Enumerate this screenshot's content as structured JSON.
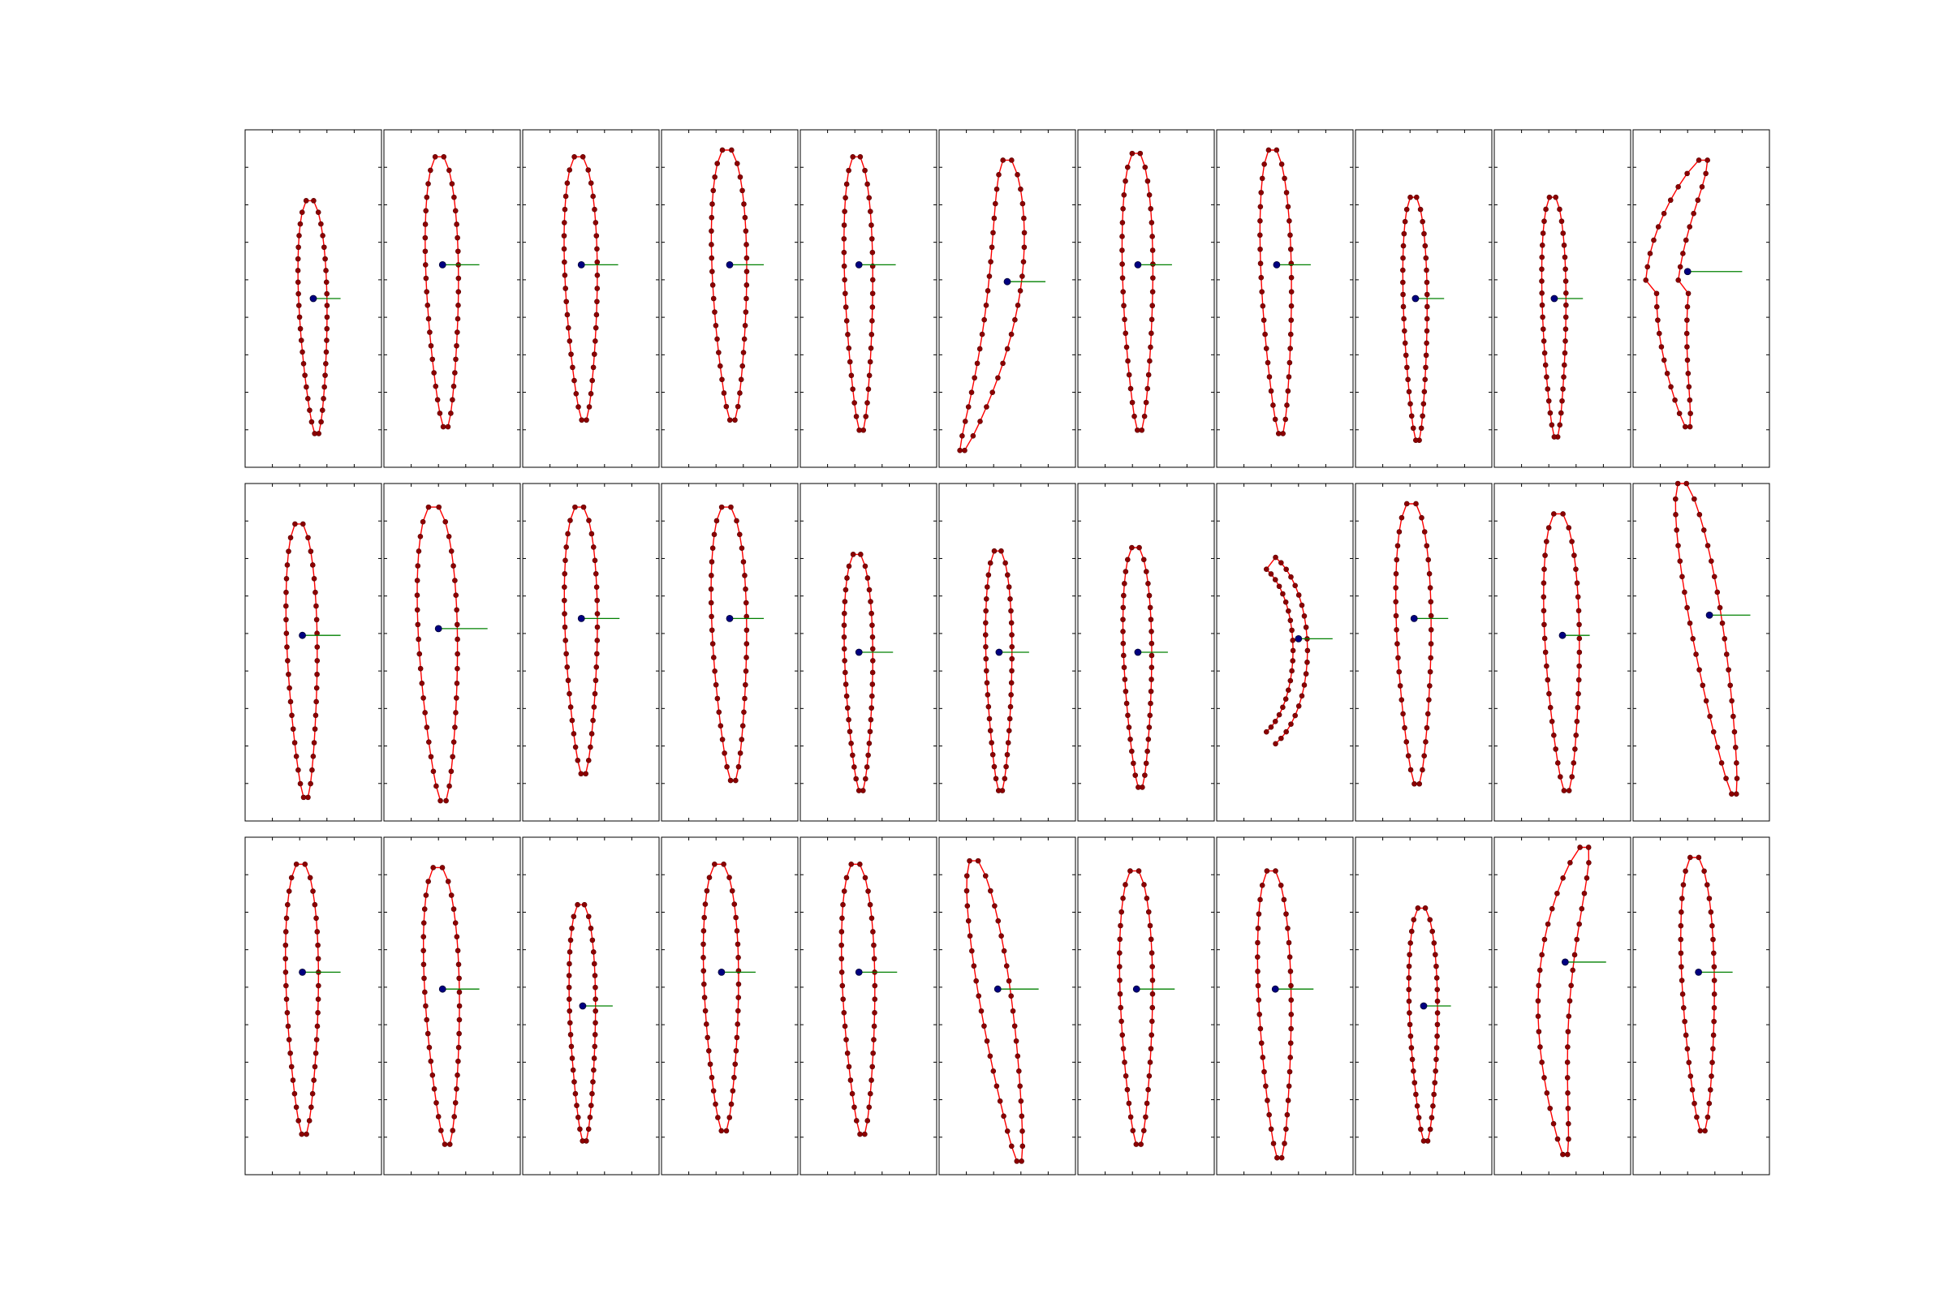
{
  "figure": {
    "description_free": true,
    "rows": 3,
    "cols": 11,
    "colors": {
      "contour_line": "#ff0000",
      "contour_point": "#8b0000",
      "centroid": "#000080",
      "normal_vector": "#008000",
      "frame": "#000000",
      "background": "#ffffff"
    }
  },
  "chart_data": {
    "type": "scatter",
    "title": "",
    "grid": false,
    "legend": "none",
    "panel_xlim": [
      0,
      1
    ],
    "panel_ylim": [
      0,
      1
    ],
    "panels": [
      {
        "row": 0,
        "col": 0,
        "shape": "upright",
        "cx": 0.5,
        "cy": 0.5,
        "top": 0.79,
        "bottom": 0.1,
        "width": 0.26,
        "bend": 0.1,
        "vec": 0.2
      },
      {
        "row": 0,
        "col": 1,
        "shape": "upright",
        "cx": 0.43,
        "cy": 0.6,
        "top": 0.92,
        "bottom": 0.12,
        "width": 0.3,
        "bend": 0.09,
        "vec": 0.27
      },
      {
        "row": 0,
        "col": 2,
        "shape": "upright",
        "cx": 0.43,
        "cy": 0.6,
        "top": 0.92,
        "bottom": 0.14,
        "width": 0.3,
        "bend": 0.08,
        "vec": 0.27
      },
      {
        "row": 0,
        "col": 3,
        "shape": "upright",
        "cx": 0.5,
        "cy": 0.6,
        "top": 0.94,
        "bottom": 0.14,
        "width": 0.32,
        "bend": 0.08,
        "vec": 0.25
      },
      {
        "row": 0,
        "col": 4,
        "shape": "upright",
        "cx": 0.43,
        "cy": 0.6,
        "top": 0.92,
        "bottom": 0.11,
        "width": 0.26,
        "bend": 0.07,
        "vec": 0.27
      },
      {
        "row": 0,
        "col": 5,
        "shape": "curve",
        "cx": 0.5,
        "cy": 0.55,
        "top": 0.91,
        "bottom": 0.05,
        "width": 0.3,
        "bend": 0.55,
        "vec": 0.28
      },
      {
        "row": 0,
        "col": 6,
        "shape": "upright",
        "cx": 0.44,
        "cy": 0.6,
        "top": 0.93,
        "bottom": 0.11,
        "width": 0.28,
        "bend": 0.05,
        "vec": 0.25
      },
      {
        "row": 0,
        "col": 7,
        "shape": "upright",
        "cx": 0.44,
        "cy": 0.6,
        "top": 0.94,
        "bottom": 0.1,
        "width": 0.28,
        "bend": 0.12,
        "vec": 0.25
      },
      {
        "row": 0,
        "col": 8,
        "shape": "upright",
        "cx": 0.44,
        "cy": 0.5,
        "top": 0.8,
        "bottom": 0.08,
        "width": 0.22,
        "bend": 0.06,
        "vec": 0.21
      },
      {
        "row": 0,
        "col": 9,
        "shape": "upright",
        "cx": 0.44,
        "cy": 0.5,
        "top": 0.8,
        "bottom": 0.09,
        "width": 0.22,
        "bend": 0.05,
        "vec": 0.21
      },
      {
        "row": 0,
        "col": 10,
        "shape": "hook",
        "cx": 0.4,
        "cy": 0.58,
        "top": 0.91,
        "bottom": 0.12,
        "width": 0.3,
        "bend": 0.38,
        "vec": 0.4
      },
      {
        "row": 1,
        "col": 0,
        "shape": "upright",
        "cx": 0.42,
        "cy": 0.55,
        "top": 0.88,
        "bottom": 0.07,
        "width": 0.28,
        "bend": 0.1,
        "vec": 0.28
      },
      {
        "row": 1,
        "col": 1,
        "shape": "upright",
        "cx": 0.4,
        "cy": 0.57,
        "top": 0.93,
        "bottom": 0.06,
        "width": 0.36,
        "bend": 0.14,
        "vec": 0.36
      },
      {
        "row": 1,
        "col": 2,
        "shape": "upright",
        "cx": 0.43,
        "cy": 0.6,
        "top": 0.93,
        "bottom": 0.14,
        "width": 0.3,
        "bend": 0.06,
        "vec": 0.28
      },
      {
        "row": 1,
        "col": 3,
        "shape": "upright",
        "cx": 0.5,
        "cy": 0.6,
        "top": 0.93,
        "bottom": 0.12,
        "width": 0.32,
        "bend": 0.1,
        "vec": 0.25
      },
      {
        "row": 1,
        "col": 4,
        "shape": "upright",
        "cx": 0.43,
        "cy": 0.5,
        "top": 0.79,
        "bottom": 0.09,
        "width": 0.26,
        "bend": 0.06,
        "vec": 0.25
      },
      {
        "row": 1,
        "col": 5,
        "shape": "upright",
        "cx": 0.44,
        "cy": 0.5,
        "top": 0.8,
        "bottom": 0.09,
        "width": 0.24,
        "bend": 0.04,
        "vec": 0.22
      },
      {
        "row": 1,
        "col": 6,
        "shape": "upright",
        "cx": 0.44,
        "cy": 0.5,
        "top": 0.81,
        "bottom": 0.1,
        "width": 0.26,
        "bend": 0.07,
        "vec": 0.22
      },
      {
        "row": 1,
        "col": 7,
        "shape": "crescent",
        "cx": 0.6,
        "cy": 0.54,
        "top": 0.77,
        "bottom": 0.24,
        "width": 0.2,
        "bend": 0.55,
        "vec": 0.25
      },
      {
        "row": 1,
        "col": 8,
        "shape": "upright",
        "cx": 0.43,
        "cy": 0.6,
        "top": 0.94,
        "bottom": 0.11,
        "width": 0.32,
        "bend": 0.08,
        "vec": 0.25
      },
      {
        "row": 1,
        "col": 9,
        "shape": "upright",
        "cx": 0.5,
        "cy": 0.55,
        "top": 0.91,
        "bottom": 0.09,
        "width": 0.32,
        "bend": 0.12,
        "vec": 0.2
      },
      {
        "row": 1,
        "col": 10,
        "shape": "curve-right",
        "cx": 0.56,
        "cy": 0.61,
        "top": 1.0,
        "bottom": 0.08,
        "width": 0.3,
        "bend": 0.4,
        "vec": 0.3
      },
      {
        "row": 2,
        "col": 0,
        "shape": "upright",
        "cx": 0.42,
        "cy": 0.6,
        "top": 0.92,
        "bottom": 0.12,
        "width": 0.3,
        "bend": 0.05,
        "vec": 0.28
      },
      {
        "row": 2,
        "col": 1,
        "shape": "upright",
        "cx": 0.43,
        "cy": 0.55,
        "top": 0.91,
        "bottom": 0.09,
        "width": 0.32,
        "bend": 0.14,
        "vec": 0.27
      },
      {
        "row": 2,
        "col": 2,
        "shape": "upright",
        "cx": 0.44,
        "cy": 0.5,
        "top": 0.8,
        "bottom": 0.1,
        "width": 0.24,
        "bend": 0.05,
        "vec": 0.22
      },
      {
        "row": 2,
        "col": 3,
        "shape": "upright",
        "cx": 0.44,
        "cy": 0.6,
        "top": 0.92,
        "bottom": 0.13,
        "width": 0.32,
        "bend": 0.07,
        "vec": 0.25
      },
      {
        "row": 2,
        "col": 4,
        "shape": "upright",
        "cx": 0.43,
        "cy": 0.6,
        "top": 0.92,
        "bottom": 0.12,
        "width": 0.3,
        "bend": 0.1,
        "vec": 0.28
      },
      {
        "row": 2,
        "col": 5,
        "shape": "curve-right",
        "cx": 0.43,
        "cy": 0.55,
        "top": 0.93,
        "bottom": 0.04,
        "width": 0.3,
        "bend": 0.35,
        "vec": 0.3
      },
      {
        "row": 2,
        "col": 6,
        "shape": "upright",
        "cx": 0.43,
        "cy": 0.55,
        "top": 0.9,
        "bottom": 0.09,
        "width": 0.3,
        "bend": 0.06,
        "vec": 0.28
      },
      {
        "row": 2,
        "col": 7,
        "shape": "upright",
        "cx": 0.43,
        "cy": 0.55,
        "top": 0.9,
        "bottom": 0.05,
        "width": 0.3,
        "bend": 0.12,
        "vec": 0.28
      },
      {
        "row": 2,
        "col": 8,
        "shape": "upright",
        "cx": 0.5,
        "cy": 0.5,
        "top": 0.79,
        "bottom": 0.1,
        "width": 0.26,
        "bend": 0.06,
        "vec": 0.2
      },
      {
        "row": 2,
        "col": 9,
        "shape": "hook-right",
        "cx": 0.52,
        "cy": 0.63,
        "top": 0.97,
        "bottom": 0.06,
        "width": 0.3,
        "bend": 0.4,
        "vec": 0.3
      },
      {
        "row": 2,
        "col": 10,
        "shape": "upright",
        "cx": 0.48,
        "cy": 0.6,
        "top": 0.94,
        "bottom": 0.13,
        "width": 0.3,
        "bend": 0.12,
        "vec": 0.25
      }
    ]
  }
}
